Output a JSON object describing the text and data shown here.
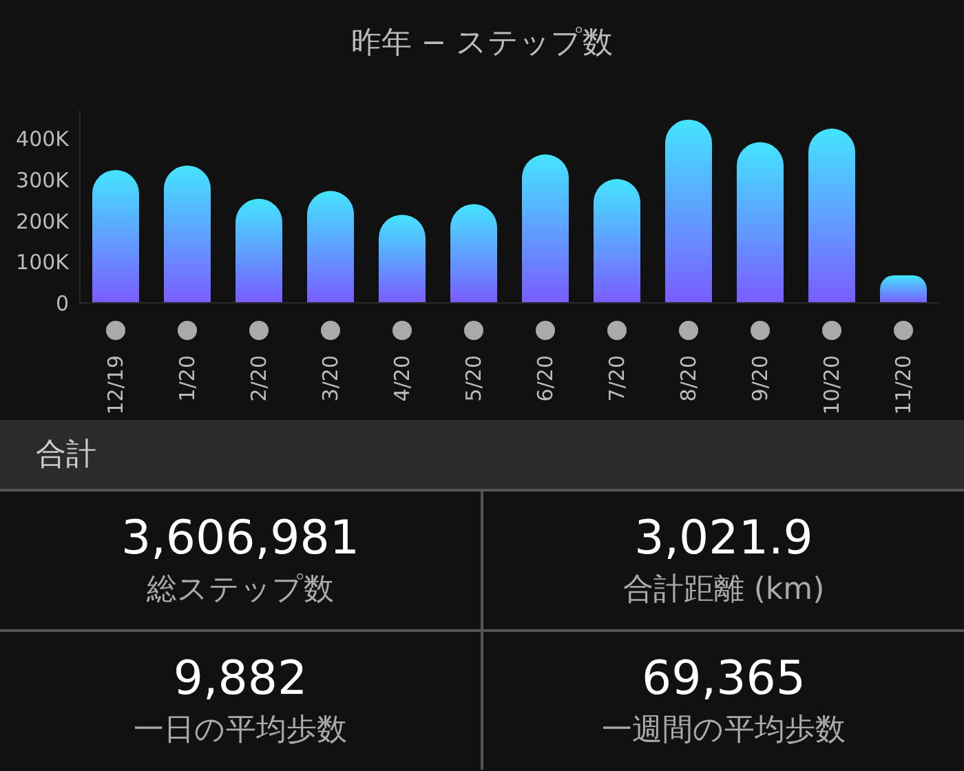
{
  "chart_data": [
    {
      "type": "bar",
      "title": "昨年 − ステップ数",
      "categories": [
        "12/19",
        "1/20",
        "2/20",
        "3/20",
        "4/20",
        "5/20",
        "6/20",
        "7/20",
        "8/20",
        "9/20",
        "10/20",
        "11/20"
      ],
      "values": [
        324000,
        335000,
        254000,
        273000,
        215000,
        241000,
        362000,
        302000,
        447000,
        392000,
        425000,
        67000
      ],
      "color": "#7a5cff",
      "ylim": [
        0,
        470000
      ],
      "yticks": [
        0,
        {
          "value": 100000,
          "label": "100K"
        },
        {
          "value": 200000,
          "label": "200K"
        },
        {
          "value": 300000,
          "label": "300K"
        },
        {
          "value": 400000,
          "label": "400K"
        }
      ],
      "grid": false,
      "legend": false
    },
    {
      "type": "other",
      "title": "合計",
      "annotations": [
        "3,606,981",
        "総ステップ数",
        "3,021.9",
        "合計距離 (km)",
        "9,882",
        "一日の平均歩数",
        "69,365",
        "一週間の平均歩数"
      ]
    }
  ]
}
